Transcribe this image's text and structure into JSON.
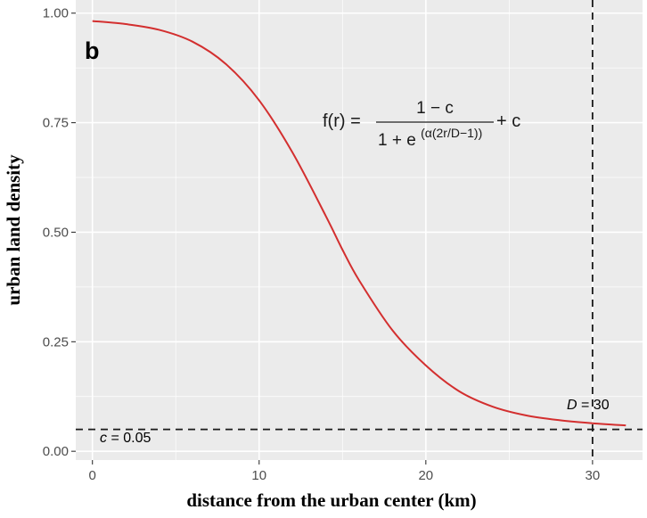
{
  "chart_data": {
    "type": "line",
    "panel_label": "b",
    "title": "",
    "xlabel": "distance from the urban center (km)",
    "ylabel": "urban land density",
    "xlim": [
      -1,
      33
    ],
    "ylim": [
      -0.02,
      1.03
    ],
    "x_ticks": [
      0,
      10,
      20,
      30
    ],
    "x_tick_labels": [
      "0",
      "10",
      "20",
      "30"
    ],
    "y_ticks": [
      0.0,
      0.25,
      0.5,
      0.75,
      1.0
    ],
    "y_tick_labels": [
      "0.00",
      "0.25",
      "0.50",
      "0.75",
      "1.00"
    ],
    "grid": true,
    "legend": "none",
    "series": [
      {
        "x": [
          0,
          2,
          4,
          6,
          8,
          10,
          12,
          14,
          15,
          16,
          18,
          20,
          22,
          24,
          26,
          28,
          30,
          32
        ],
        "y": [
          0.982,
          0.975,
          0.962,
          0.935,
          0.884,
          0.801,
          0.682,
          0.537,
          0.46,
          0.39,
          0.276,
          0.196,
          0.137,
          0.102,
          0.082,
          0.071,
          0.064,
          0.059
        ]
      }
    ],
    "reference_lines": [
      {
        "orientation": "horizontal",
        "value": 0.05,
        "style": "dashed"
      },
      {
        "orientation": "vertical",
        "value": 30,
        "style": "dashed"
      }
    ],
    "annotations": {
      "c_label": {
        "italic": "c",
        "text": " = 0.05"
      },
      "d_label": {
        "italic": "D",
        "text": " = 30"
      },
      "formula": {
        "lhs": "f(r) =",
        "numerator": "1 − c",
        "denominator_base": "1 + e",
        "denominator_exponent": "(α(2r/D−1))",
        "rhs": "+ c"
      }
    },
    "colors": {
      "background": "#ffffff",
      "panel": "#ebebeb",
      "grid": "#ffffff",
      "line": "#d32f2f",
      "reference": "#1a1a1a"
    }
  }
}
